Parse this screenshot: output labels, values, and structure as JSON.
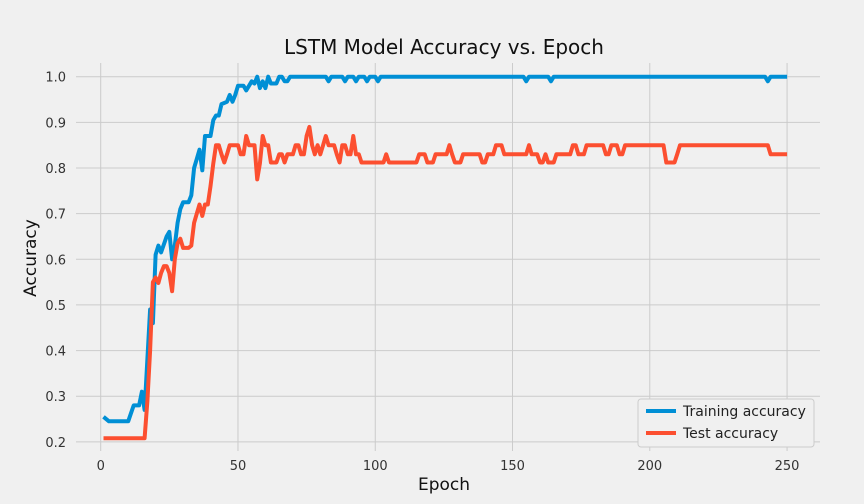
{
  "chart_data": {
    "type": "line",
    "title": "LSTM Model Accuracy vs. Epoch",
    "xlabel": "Epoch",
    "ylabel": "Accuracy",
    "xlim": [
      -9,
      262
    ],
    "ylim": [
      0.18,
      1.03
    ],
    "xticks": [
      0,
      50,
      100,
      150,
      200,
      250
    ],
    "yticks": [
      0.2,
      0.3,
      0.4,
      0.5,
      0.6,
      0.7,
      0.8,
      0.9,
      1.0
    ],
    "grid": true,
    "legend_position": "bottom-right",
    "series": [
      {
        "name": "Training accuracy",
        "color": "#008fd5",
        "points": [
          [
            1,
            0.255
          ],
          [
            3,
            0.245
          ],
          [
            10,
            0.245
          ],
          [
            12,
            0.28
          ],
          [
            14,
            0.28
          ],
          [
            15,
            0.31
          ],
          [
            16,
            0.27
          ],
          [
            18,
            0.49
          ],
          [
            19,
            0.46
          ],
          [
            20,
            0.61
          ],
          [
            21,
            0.63
          ],
          [
            22,
            0.615
          ],
          [
            24,
            0.65
          ],
          [
            25,
            0.66
          ],
          [
            26,
            0.6
          ],
          [
            27,
            0.63
          ],
          [
            28,
            0.68
          ],
          [
            29,
            0.71
          ],
          [
            30,
            0.725
          ],
          [
            32,
            0.725
          ],
          [
            33,
            0.74
          ],
          [
            34,
            0.8
          ],
          [
            35,
            0.82
          ],
          [
            36,
            0.84
          ],
          [
            37,
            0.795
          ],
          [
            38,
            0.87
          ],
          [
            40,
            0.87
          ],
          [
            41,
            0.905
          ],
          [
            42,
            0.915
          ],
          [
            43,
            0.915
          ],
          [
            44,
            0.94
          ],
          [
            46,
            0.945
          ],
          [
            47,
            0.96
          ],
          [
            48,
            0.945
          ],
          [
            49,
            0.96
          ],
          [
            50,
            0.98
          ],
          [
            52,
            0.98
          ],
          [
            53,
            0.97
          ],
          [
            54,
            0.98
          ],
          [
            55,
            0.99
          ],
          [
            56,
            0.985
          ],
          [
            57,
            1.0
          ],
          [
            58,
            0.975
          ],
          [
            59,
            0.99
          ],
          [
            60,
            0.975
          ],
          [
            61,
            1.0
          ],
          [
            62,
            0.985
          ],
          [
            64,
            0.985
          ],
          [
            65,
            1.0
          ],
          [
            66,
            1.0
          ],
          [
            67,
            0.99
          ],
          [
            68,
            0.99
          ],
          [
            69,
            1.0
          ],
          [
            82,
            1.0
          ],
          [
            83,
            0.99
          ],
          [
            84,
            1.0
          ],
          [
            88,
            1.0
          ],
          [
            89,
            0.99
          ],
          [
            90,
            1.0
          ],
          [
            92,
            1.0
          ],
          [
            93,
            0.99
          ],
          [
            94,
            1.0
          ],
          [
            96,
            1.0
          ],
          [
            97,
            0.99
          ],
          [
            98,
            1.0
          ],
          [
            100,
            1.0
          ],
          [
            101,
            0.99
          ],
          [
            102,
            1.0
          ],
          [
            154,
            1.0
          ],
          [
            155,
            0.99
          ],
          [
            156,
            1.0
          ],
          [
            163,
            1.0
          ],
          [
            164,
            0.99
          ],
          [
            165,
            1.0
          ],
          [
            242,
            1.0
          ],
          [
            243,
            0.99
          ],
          [
            244,
            1.0
          ],
          [
            250,
            1.0
          ]
        ]
      },
      {
        "name": "Test accuracy",
        "color": "#fc4f30",
        "points": [
          [
            1,
            0.208
          ],
          [
            16,
            0.208
          ],
          [
            17,
            0.29
          ],
          [
            18,
            0.4
          ],
          [
            19,
            0.55
          ],
          [
            20,
            0.56
          ],
          [
            21,
            0.548
          ],
          [
            22,
            0.57
          ],
          [
            23,
            0.585
          ],
          [
            24,
            0.585
          ],
          [
            25,
            0.57
          ],
          [
            26,
            0.53
          ],
          [
            27,
            0.6
          ],
          [
            28,
            0.635
          ],
          [
            29,
            0.645
          ],
          [
            30,
            0.625
          ],
          [
            32,
            0.625
          ],
          [
            33,
            0.63
          ],
          [
            34,
            0.68
          ],
          [
            35,
            0.7
          ],
          [
            36,
            0.72
          ],
          [
            37,
            0.695
          ],
          [
            38,
            0.72
          ],
          [
            39,
            0.72
          ],
          [
            40,
            0.76
          ],
          [
            41,
            0.81
          ],
          [
            42,
            0.85
          ],
          [
            43,
            0.85
          ],
          [
            44,
            0.83
          ],
          [
            45,
            0.812
          ],
          [
            46,
            0.83
          ],
          [
            47,
            0.85
          ],
          [
            50,
            0.85
          ],
          [
            51,
            0.83
          ],
          [
            52,
            0.83
          ],
          [
            53,
            0.87
          ],
          [
            54,
            0.85
          ],
          [
            56,
            0.85
          ],
          [
            57,
            0.775
          ],
          [
            58,
            0.81
          ],
          [
            59,
            0.87
          ],
          [
            60,
            0.85
          ],
          [
            61,
            0.85
          ],
          [
            62,
            0.812
          ],
          [
            64,
            0.812
          ],
          [
            65,
            0.83
          ],
          [
            66,
            0.83
          ],
          [
            67,
            0.812
          ],
          [
            68,
            0.83
          ],
          [
            70,
            0.83
          ],
          [
            71,
            0.85
          ],
          [
            72,
            0.85
          ],
          [
            73,
            0.83
          ],
          [
            74,
            0.83
          ],
          [
            75,
            0.87
          ],
          [
            76,
            0.89
          ],
          [
            77,
            0.85
          ],
          [
            78,
            0.83
          ],
          [
            79,
            0.85
          ],
          [
            80,
            0.83
          ],
          [
            81,
            0.85
          ],
          [
            82,
            0.87
          ],
          [
            83,
            0.85
          ],
          [
            84,
            0.85
          ],
          [
            85,
            0.85
          ],
          [
            86,
            0.83
          ],
          [
            87,
            0.812
          ],
          [
            88,
            0.85
          ],
          [
            89,
            0.85
          ],
          [
            90,
            0.83
          ],
          [
            91,
            0.83
          ],
          [
            92,
            0.87
          ],
          [
            93,
            0.83
          ],
          [
            94,
            0.83
          ],
          [
            95,
            0.812
          ],
          [
            103,
            0.812
          ],
          [
            104,
            0.83
          ],
          [
            105,
            0.812
          ],
          [
            115,
            0.812
          ],
          [
            116,
            0.83
          ],
          [
            118,
            0.83
          ],
          [
            119,
            0.812
          ],
          [
            121,
            0.812
          ],
          [
            122,
            0.83
          ],
          [
            126,
            0.83
          ],
          [
            127,
            0.85
          ],
          [
            128,
            0.83
          ],
          [
            129,
            0.812
          ],
          [
            131,
            0.812
          ],
          [
            132,
            0.83
          ],
          [
            138,
            0.83
          ],
          [
            139,
            0.812
          ],
          [
            140,
            0.812
          ],
          [
            141,
            0.83
          ],
          [
            143,
            0.83
          ],
          [
            144,
            0.85
          ],
          [
            146,
            0.85
          ],
          [
            147,
            0.83
          ],
          [
            155,
            0.83
          ],
          [
            156,
            0.85
          ],
          [
            157,
            0.83
          ],
          [
            159,
            0.83
          ],
          [
            160,
            0.812
          ],
          [
            161,
            0.812
          ],
          [
            162,
            0.83
          ],
          [
            163,
            0.812
          ],
          [
            165,
            0.812
          ],
          [
            166,
            0.83
          ],
          [
            171,
            0.83
          ],
          [
            172,
            0.85
          ],
          [
            173,
            0.85
          ],
          [
            174,
            0.83
          ],
          [
            176,
            0.83
          ],
          [
            177,
            0.85
          ],
          [
            183,
            0.85
          ],
          [
            184,
            0.83
          ],
          [
            185,
            0.83
          ],
          [
            186,
            0.85
          ],
          [
            188,
            0.85
          ],
          [
            189,
            0.83
          ],
          [
            190,
            0.83
          ],
          [
            191,
            0.85
          ],
          [
            205,
            0.85
          ],
          [
            206,
            0.812
          ],
          [
            209,
            0.812
          ],
          [
            210,
            0.83
          ],
          [
            211,
            0.85
          ],
          [
            243,
            0.85
          ],
          [
            244,
            0.83
          ],
          [
            250,
            0.83
          ]
        ]
      }
    ]
  }
}
